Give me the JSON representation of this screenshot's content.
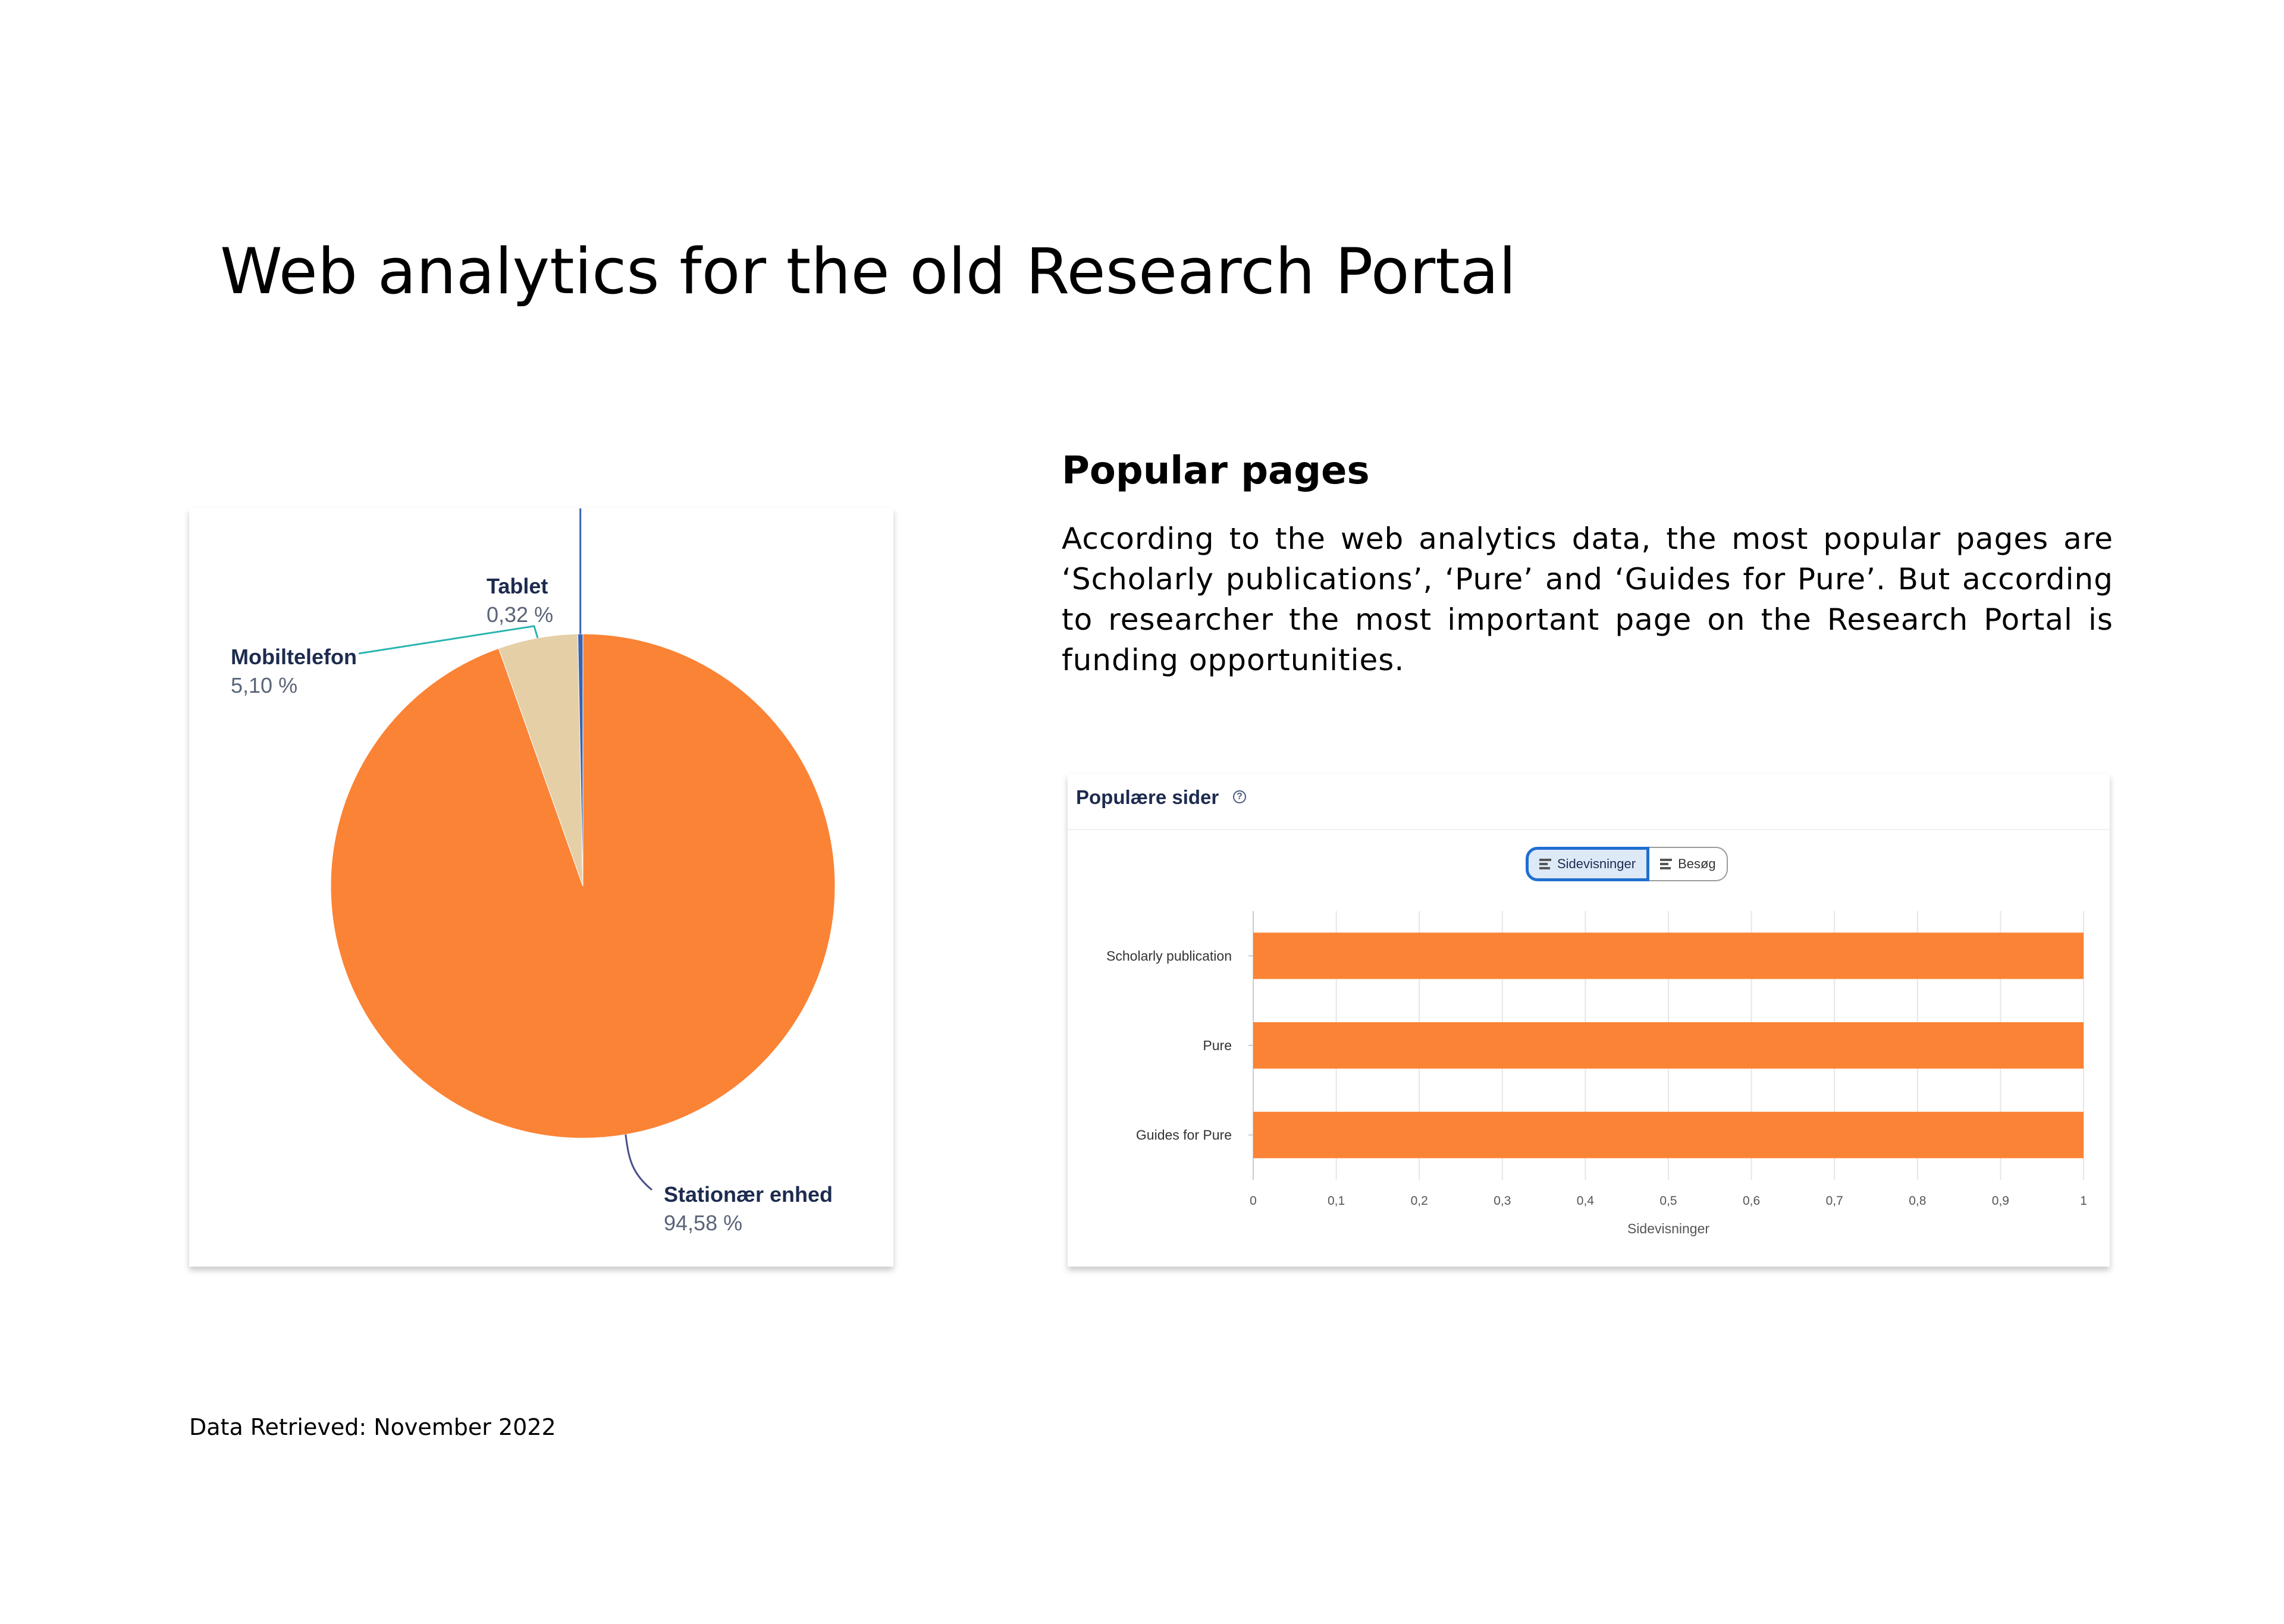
{
  "page": {
    "title": "Web analytics for the old Research Portal",
    "footnote": "Data Retrieved: November 2022"
  },
  "popular_section": {
    "heading": "Popular pages",
    "paragraph": "According to the web analytics data, the most popular pages are ‘Scholarly publications’, ‘Pure’ and ‘Guides for Pure’. But according to researcher the most important page on the Research Portal is funding opportunities."
  },
  "bar_card": {
    "title": "Populære sider",
    "help_icon": "question-circle-icon",
    "toggle": {
      "active_label": "Sidevisninger",
      "inactive_label": "Besøg",
      "icon": "bar-chart-icon"
    }
  },
  "chart_data": [
    {
      "type": "pie",
      "title": "",
      "slices": [
        {
          "label": "Stationær enhed",
          "value": 94.58,
          "value_text": "94,58 %",
          "color": "#fb8335"
        },
        {
          "label": "Mobiltelefon",
          "value": 5.1,
          "value_text": "5,10 %",
          "color": "#e5cfa6",
          "leader_color": "#2ab5b0"
        },
        {
          "label": "Tablet",
          "value": 0.32,
          "value_text": "0,32 %",
          "color": "#3a63b0",
          "leader_color": "#3a63b0"
        }
      ],
      "label_color": "#1d2b4f",
      "value_color": "#5a6478"
    },
    {
      "type": "bar",
      "orientation": "horizontal",
      "categories": [
        "Scholarly publication",
        "Pure",
        "Guides for Pure"
      ],
      "values": [
        1,
        1,
        1
      ],
      "xlabel": "Sidevisninger",
      "ylabel": "",
      "xlim": [
        0,
        1
      ],
      "ticks": [
        "0",
        "0,1",
        "0,2",
        "0,3",
        "0,4",
        "0,5",
        "0,6",
        "0,7",
        "0,8",
        "0,9",
        "1"
      ],
      "grid": true,
      "bar_color": "#fb8335"
    }
  ]
}
